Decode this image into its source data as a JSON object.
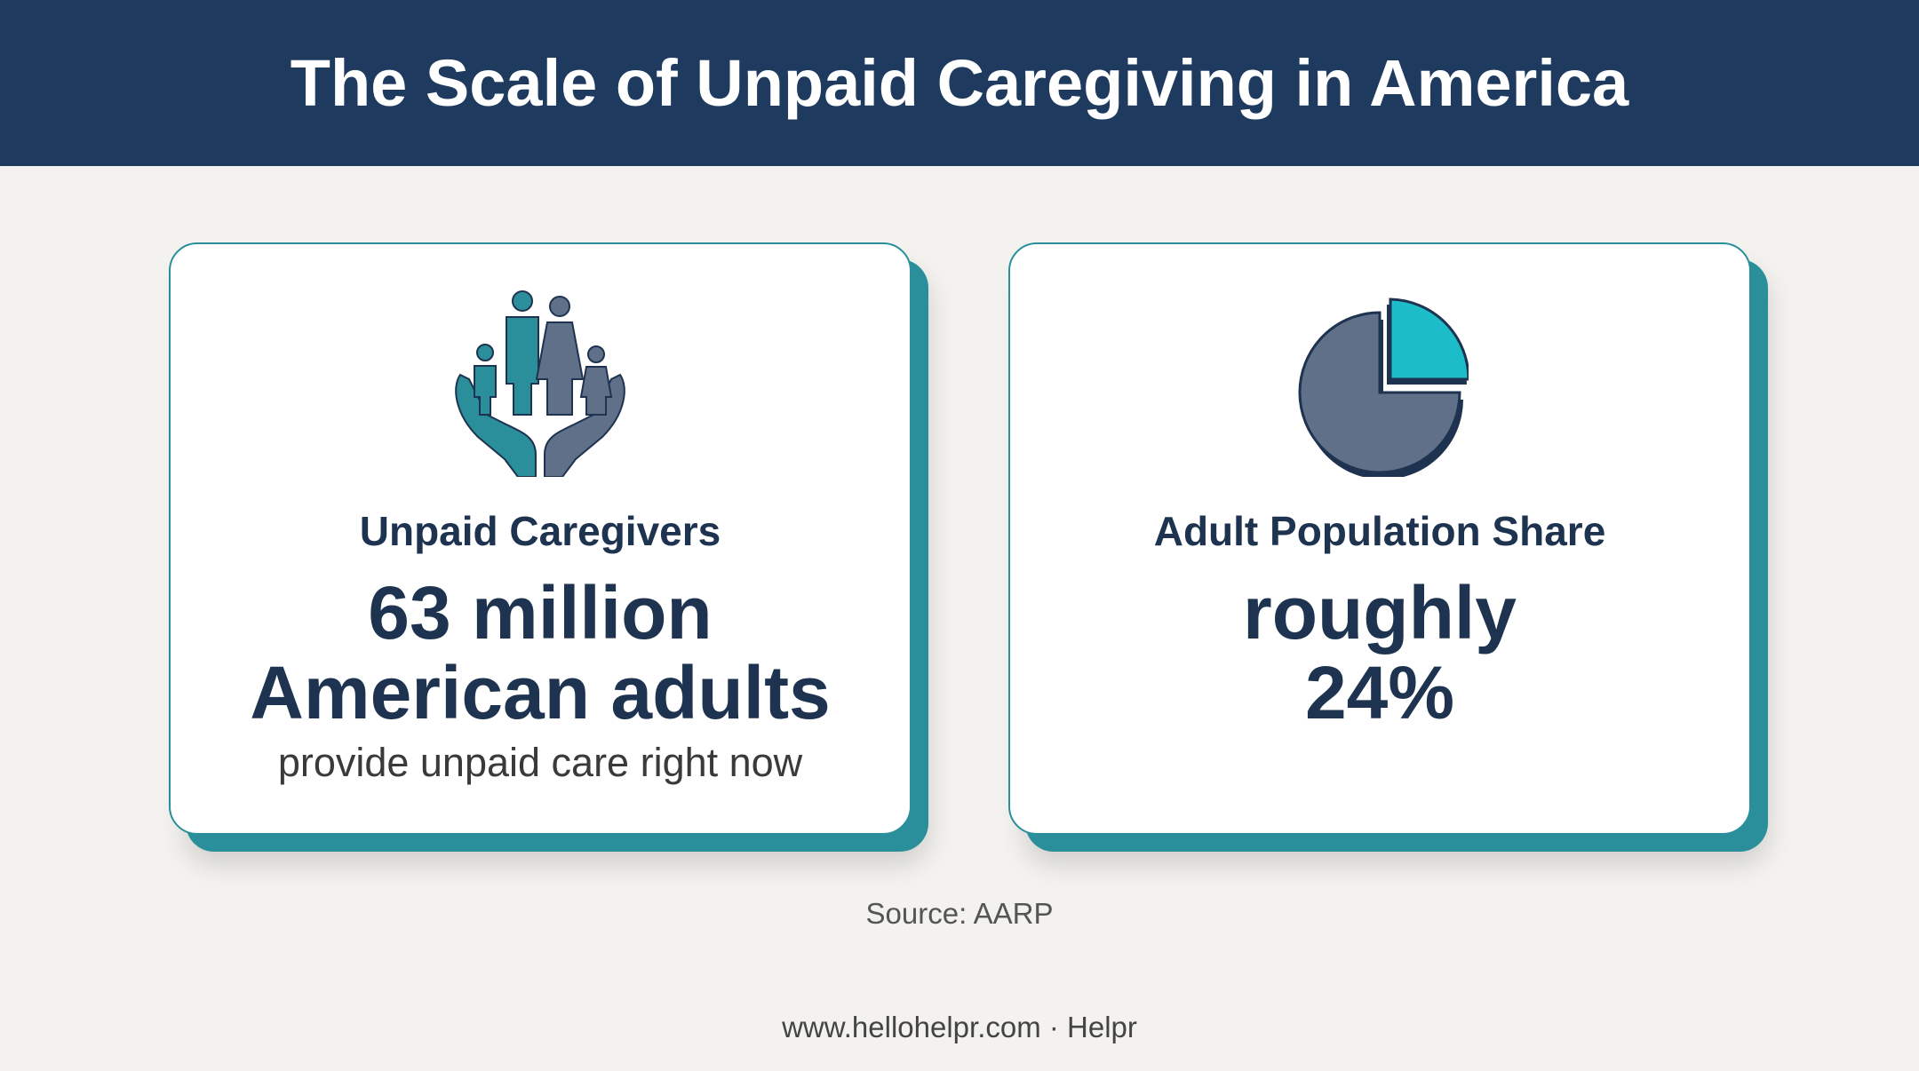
{
  "header": {
    "title": "The Scale of Unpaid Caregiving in America"
  },
  "cards": [
    {
      "label": "Unpaid Caregivers",
      "value_lines": [
        "63 million",
        "American adults"
      ],
      "note": "provide unpaid care right now"
    },
    {
      "label": "Adult Population Share",
      "value_lines": [
        "roughly",
        "24%"
      ]
    }
  ],
  "source": "Source: AARP",
  "footer": "www.hellohelpr.com · Helpr"
}
